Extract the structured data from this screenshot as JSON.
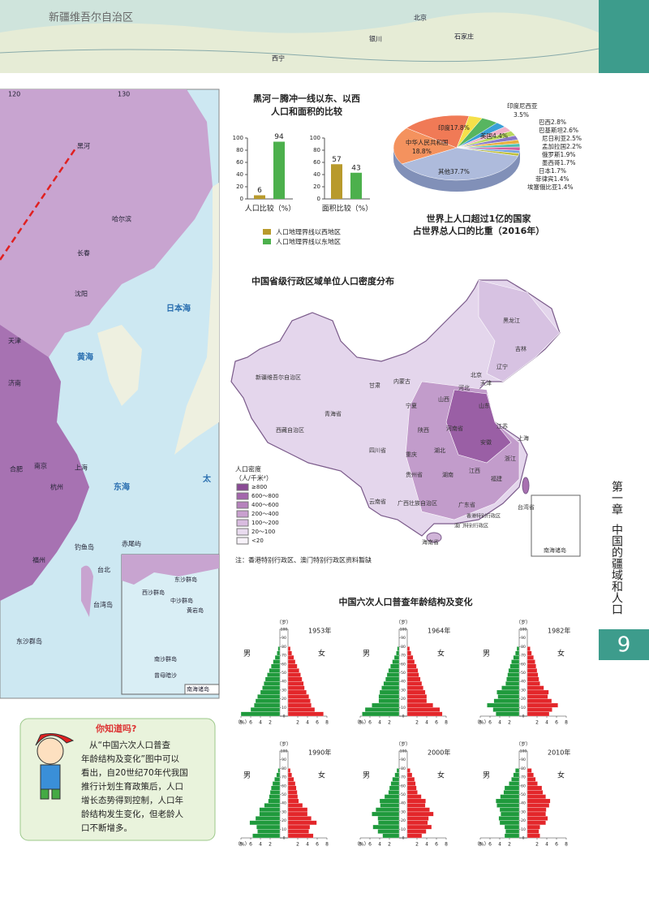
{
  "header_map": {
    "labels": [
      "新疆维吾尔自治区",
      "银川",
      "北京",
      "石家庄",
      "西宁"
    ]
  },
  "sidebar": {
    "chapter": "第一章",
    "chapter_title": "中国的疆域和人口",
    "page": "9"
  },
  "left_map": {
    "longitudes": [
      "120",
      "130"
    ],
    "labels": [
      "黑河",
      "哈尔滨",
      "长春",
      "沈阳",
      "天津",
      "济南",
      "合肥",
      "南京",
      "上海",
      "杭州",
      "福州",
      "台北",
      "台湾岛",
      "钓鱼岛",
      "赤尾屿",
      "东沙群岛"
    ],
    "seas": [
      "日本海",
      "黄海",
      "东海",
      "太"
    ],
    "inset_title": "南海诸岛",
    "inset_labels": [
      "东沙群岛",
      "西沙群岛",
      "中沙群岛",
      "黄岩岛",
      "南沙群岛",
      "曾母暗沙"
    ]
  },
  "chart_data": [
    {
      "type": "bar",
      "title": [
        "黑河－腾冲一线以东、以西",
        "人口和面积的比较"
      ],
      "categories": [
        "人口比较（%）",
        "面积比较（%）"
      ],
      "series": [
        {
          "name": "人口地理界线以西地区",
          "color": "#b89a2c",
          "values": [
            6,
            57
          ]
        },
        {
          "name": "人口地理界线以东地区",
          "color": "#4cb04c",
          "values": [
            94,
            43
          ]
        }
      ],
      "ylim": [
        0,
        100
      ],
      "yticks": [
        0,
        20,
        40,
        60,
        80,
        100
      ]
    },
    {
      "type": "pie",
      "title": [
        "世界上人口超过1亿的国家",
        "占世界总人口的比重（2016年）"
      ],
      "categories": [
        "中华人民共和国",
        "印度",
        "印度尼西亚",
        "美国",
        "巴西",
        "巴基斯坦",
        "尼日利亚",
        "孟加拉国",
        "俄罗斯",
        "墨西哥",
        "日本",
        "菲律宾",
        "埃塞俄比亚",
        "其他"
      ],
      "values": [
        18.8,
        17.8,
        3.5,
        4.4,
        2.8,
        2.6,
        2.5,
        2.2,
        1.9,
        1.7,
        1.7,
        1.4,
        1.4,
        37.7
      ],
      "value_labels": [
        "18.8%",
        "17.8%",
        "3.5%",
        "4.4%",
        "2.8%",
        "2.6%",
        "2.5%",
        "2.2%",
        "1.9%",
        "1.7%",
        "1.7%",
        "1.4%",
        "1.4%",
        "37.7%"
      ],
      "colors": [
        "#f4925e",
        "#f07a56",
        "#f5e04a",
        "#57b560",
        "#3aa0d8",
        "#f0b0c8",
        "#b8d860",
        "#8878c8",
        "#e8b040",
        "#50c0b0",
        "#d060a0",
        "#70a0e0",
        "#c0c040",
        "#aebbdc"
      ]
    },
    {
      "type": "pyramid",
      "title": "中国六次人口普查年龄结构及变化",
      "unit_y": "（岁）",
      "unit_x": "（%）",
      "ylim": [
        0,
        100
      ],
      "yticks": [
        0,
        10,
        20,
        30,
        40,
        50,
        60,
        70,
        80,
        90,
        100
      ],
      "xlim": [
        0,
        8
      ],
      "xticks": [
        2,
        4,
        6,
        8
      ],
      "ages": [
        0,
        5,
        10,
        15,
        20,
        25,
        30,
        35,
        40,
        45,
        50,
        55,
        60,
        65,
        70,
        75
      ],
      "panels": [
        {
          "title": "1953年",
          "series": [
            {
              "name": "男",
              "color": "#1f9a3c",
              "values": [
                8.0,
                6.0,
                5.3,
                5.0,
                4.6,
                4.0,
                3.6,
                3.3,
                3.0,
                2.6,
                2.2,
                1.8,
                1.4,
                1.0,
                0.6,
                0.4
              ]
            },
            {
              "name": "女",
              "color": "#e3262a",
              "values": [
                7.3,
                5.5,
                4.8,
                4.6,
                4.3,
                3.8,
                3.4,
                3.2,
                2.9,
                2.6,
                2.3,
                1.9,
                1.5,
                1.2,
                0.8,
                0.5
              ]
            }
          ]
        },
        {
          "title": "1964年",
          "series": [
            {
              "name": "男",
              "color": "#1f9a3c",
              "values": [
                7.6,
                7.0,
                5.6,
                4.2,
                4.2,
                4.0,
                3.6,
                3.2,
                2.8,
                2.5,
                2.2,
                1.8,
                1.4,
                1.0,
                0.6,
                0.4
              ]
            },
            {
              "name": "女",
              "color": "#e3262a",
              "values": [
                7.2,
                6.7,
                5.3,
                4.0,
                4.0,
                3.7,
                3.3,
                3.0,
                2.7,
                2.4,
                2.2,
                1.9,
                1.5,
                1.2,
                0.8,
                0.5
              ]
            }
          ]
        },
        {
          "title": "1982年",
          "series": [
            {
              "name": "男",
              "color": "#1f9a3c",
              "values": [
                4.8,
                5.4,
                6.6,
                5.2,
                4.4,
                4.6,
                3.6,
                2.8,
                2.6,
                2.4,
                2.2,
                1.9,
                1.6,
                1.2,
                0.8,
                0.5
              ]
            },
            {
              "name": "女",
              "color": "#e3262a",
              "values": [
                4.5,
                5.1,
                6.3,
                5.0,
                4.2,
                4.4,
                3.4,
                2.6,
                2.4,
                2.2,
                2.0,
                1.8,
                1.6,
                1.3,
                0.9,
                0.6
              ]
            }
          ]
        },
        {
          "title": "1990年",
          "series": [
            {
              "name": "男",
              "color": "#1f9a3c",
              "values": [
                5.6,
                4.6,
                4.8,
                6.2,
                5.0,
                4.2,
                4.2,
                3.2,
                2.4,
                2.2,
                2.0,
                1.8,
                1.5,
                1.1,
                0.7,
                0.4
              ]
            },
            {
              "name": "女",
              "color": "#e3262a",
              "values": [
                5.2,
                4.3,
                4.5,
                5.9,
                4.8,
                4.0,
                4.0,
                3.0,
                2.2,
                2.0,
                1.9,
                1.7,
                1.5,
                1.2,
                0.8,
                0.5
              ]
            }
          ]
        },
        {
          "title": "2000年",
          "series": [
            {
              "name": "男",
              "color": "#1f9a3c",
              "values": [
                3.4,
                4.4,
                5.4,
                4.3,
                4.4,
                5.6,
                4.8,
                3.9,
                4.0,
                3.0,
                2.2,
                2.0,
                1.7,
                1.4,
                0.9,
                0.5
              ]
            },
            {
              "name": "女",
              "color": "#e3262a",
              "values": [
                3.0,
                3.9,
                5.0,
                4.2,
                4.4,
                5.4,
                4.6,
                3.7,
                3.8,
                2.9,
                2.1,
                1.9,
                1.7,
                1.5,
                1.0,
                0.6
              ]
            }
          ]
        },
        {
          "title": "2010年",
          "series": [
            {
              "name": "男",
              "color": "#1f9a3c",
              "values": [
                3.0,
                2.8,
                3.0,
                4.0,
                4.2,
                3.8,
                4.0,
                4.6,
                4.8,
                3.9,
                3.2,
                3.0,
                2.1,
                1.6,
                1.2,
                0.8
              ]
            },
            {
              "name": "女",
              "color": "#e3262a",
              "values": [
                2.6,
                2.4,
                2.6,
                3.8,
                4.2,
                3.8,
                3.9,
                4.5,
                4.7,
                3.8,
                3.2,
                3.0,
                2.1,
                1.7,
                1.3,
                0.9
              ]
            }
          ]
        }
      ]
    }
  ],
  "density_map": {
    "title": "中国省级行政区域单位人口密度分布",
    "legend_title": [
      "人口密度",
      "（人/千米²）"
    ],
    "legend": [
      "≥800",
      "600～800",
      "400～600",
      "200～400",
      "100～200",
      "20～100",
      "<20"
    ],
    "provinces": [
      "黑龙江",
      "吉林",
      "辽宁",
      "内蒙古",
      "新疆维吾尔自治区",
      "西藏自治区",
      "青海省",
      "甘肃",
      "四川省",
      "云南省",
      "贵州省",
      "广西壮族自治区",
      "广东省",
      "海南省",
      "湖南",
      "江西",
      "福建",
      "浙江",
      "安徽",
      "河南省",
      "山东",
      "河北",
      "山西",
      "陕西",
      "宁夏",
      "重庆",
      "湖北",
      "台湾省",
      "江苏",
      "上海",
      "北京",
      "天津",
      "香港特别行政区",
      "澳门特别行政区",
      "南海诸岛"
    ],
    "note": "注：香港特别行政区、澳门特别行政区资料暂缺"
  },
  "tip": {
    "title": "你知道吗?",
    "text": [
      "从“中国六次人口普查",
      "年龄结构及变化”图中可以",
      "看出，自20世纪70年代我国",
      "推行计划生育政策后，人口",
      "增长态势得到控制，人口年",
      "龄结构发生变化，但老龄人",
      "口不断增多。"
    ]
  }
}
